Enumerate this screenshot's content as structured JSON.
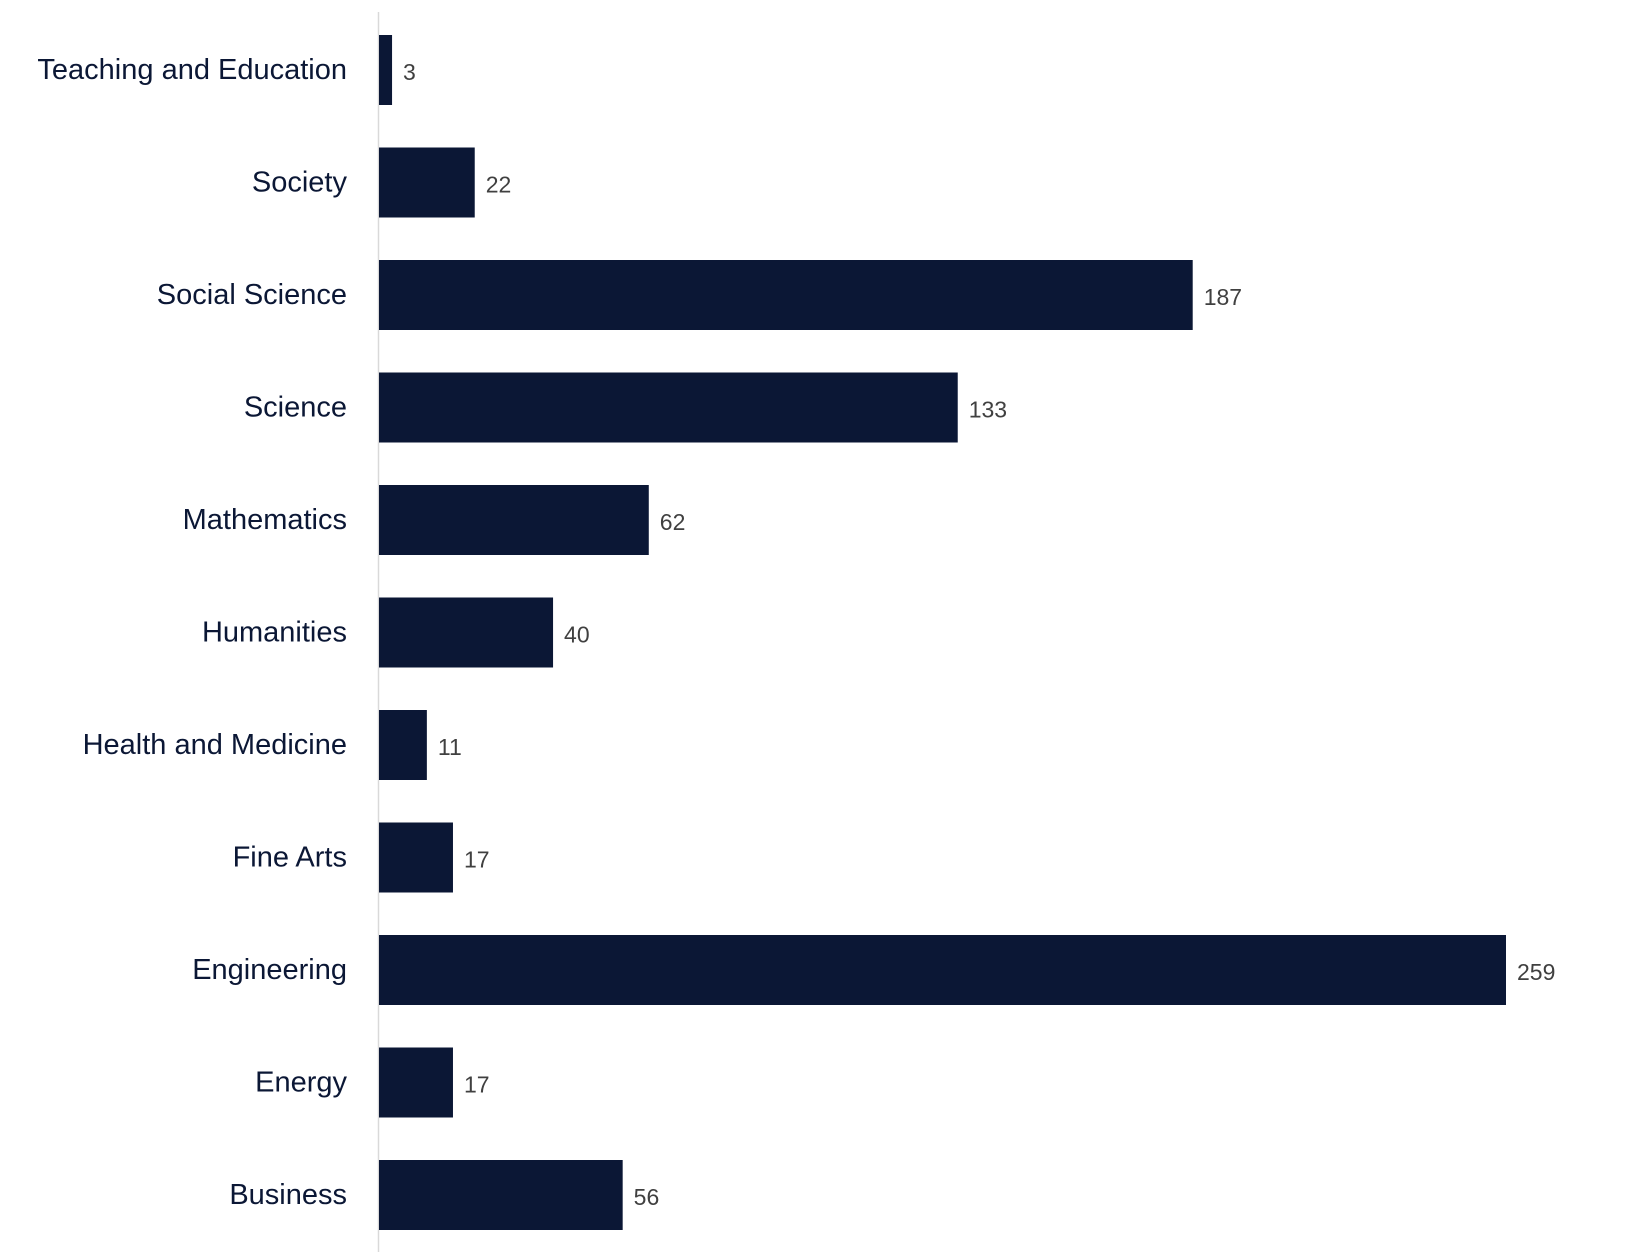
{
  "chart_data": {
    "type": "bar",
    "orientation": "horizontal",
    "categories": [
      "Teaching and Education",
      "Society",
      "Social Science",
      "Science",
      "Mathematics",
      "Humanities",
      "Health and Medicine",
      "Fine Arts",
      "Engineering",
      "Energy",
      "Business"
    ],
    "values": [
      3,
      22,
      187,
      133,
      62,
      40,
      11,
      17,
      259,
      17,
      56
    ],
    "title": "",
    "xlabel": "",
    "ylabel": "",
    "xlim": [
      0,
      259
    ],
    "grid": false,
    "legend": "none",
    "data_labels": true,
    "colors": {
      "bar": "#0b1735",
      "category_text": "#0b1735",
      "value_text": "#404040",
      "axis_line": "#d9d9d9"
    }
  }
}
